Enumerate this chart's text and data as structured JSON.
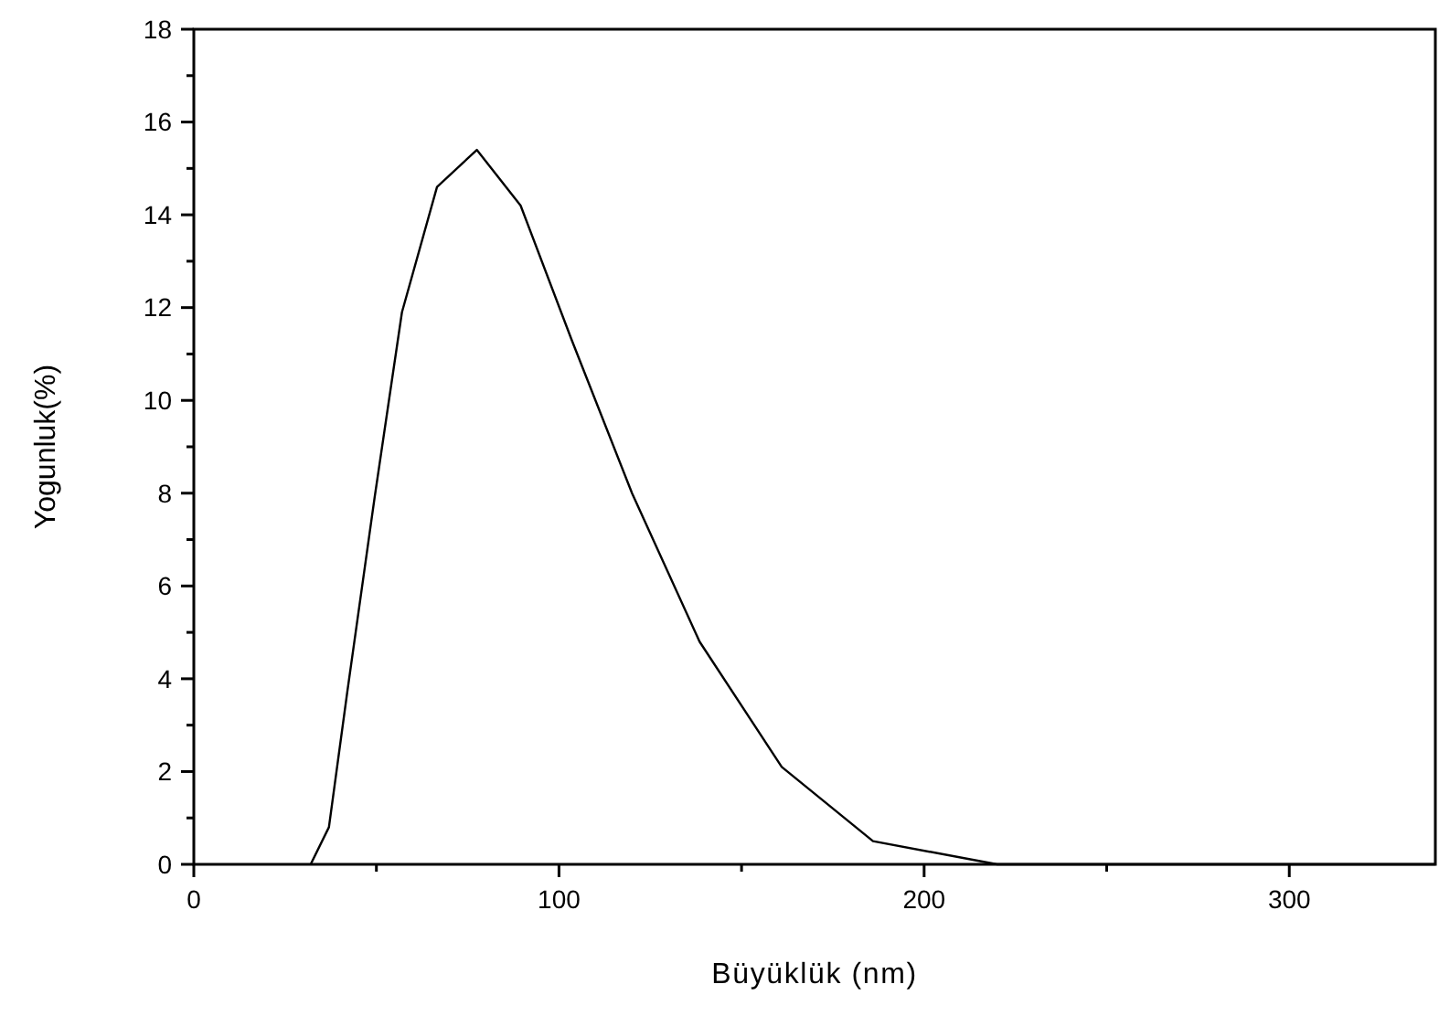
{
  "chart_data": {
    "type": "line",
    "xlabel": "Büyüklük (nm)",
    "ylabel": "Yogunluk(%)",
    "xlim": [
      0,
      340
    ],
    "ylim": [
      0,
      18
    ],
    "xticks": [
      0,
      {
        "value": 50,
        "label": null
      },
      100,
      {
        "value": 150,
        "label": null
      },
      200,
      {
        "value": 250,
        "label": null
      },
      300
    ],
    "yticks": [
      0,
      {
        "value": 1,
        "label": null
      },
      2,
      {
        "value": 3,
        "label": null
      },
      4,
      {
        "value": 5,
        "label": null
      },
      6,
      {
        "value": 7,
        "label": null
      },
      8,
      {
        "value": 9,
        "label": null
      },
      10,
      {
        "value": 11,
        "label": null
      },
      12,
      {
        "value": 13,
        "label": null
      },
      14,
      {
        "value": 15,
        "label": null
      },
      16,
      {
        "value": 17,
        "label": null
      },
      18
    ],
    "grid": false,
    "marker": "none",
    "line_style": "solid",
    "series": [
      {
        "color": "#000000",
        "x": [
          32,
          37,
          42,
          49.5,
          57,
          66.6,
          77.5,
          89.5,
          103.5,
          120,
          138.5,
          161,
          186,
          220,
          340
        ],
        "values": [
          0,
          0.8,
          3.7,
          7.9,
          11.9,
          14.6,
          15.4,
          14.2,
          11.3,
          8.0,
          4.8,
          2.1,
          0.5,
          0,
          0
        ]
      }
    ]
  }
}
